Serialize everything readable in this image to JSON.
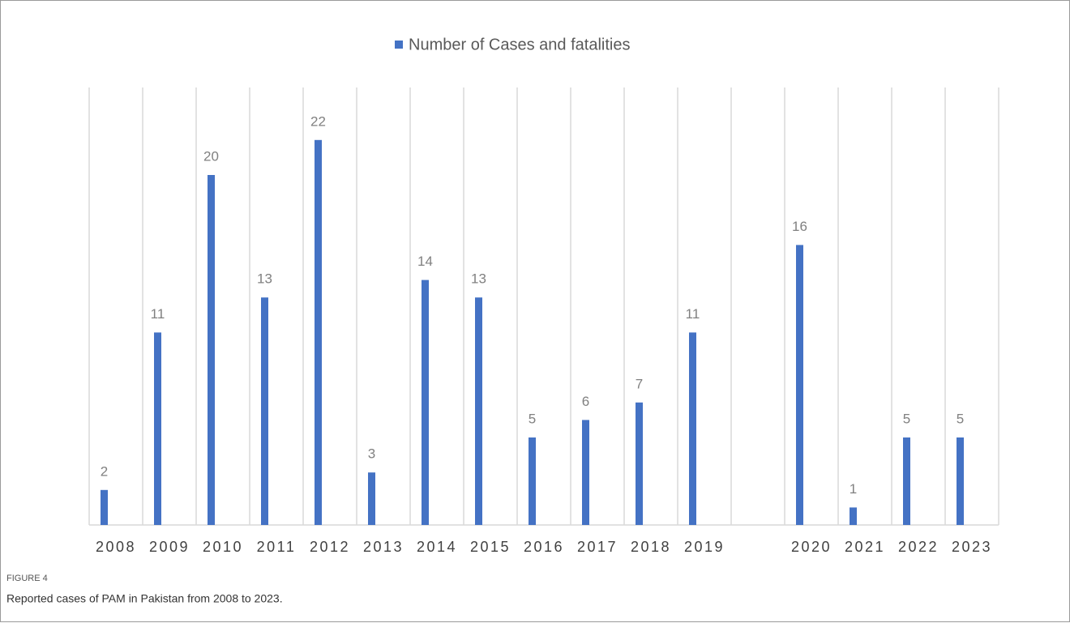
{
  "chart_data": {
    "type": "bar",
    "categories": [
      "2008",
      "2009",
      "2010",
      "2011",
      "2012",
      "2013",
      "2014",
      "2015",
      "2016",
      "2017",
      "2018",
      "2019",
      null,
      "2020",
      "2021",
      "2022",
      "2023"
    ],
    "series": [
      {
        "name": "Number of Cases and fatalities",
        "color": "#4472c4",
        "values": [
          2,
          11,
          20,
          13,
          22,
          3,
          14,
          13,
          5,
          6,
          7,
          11,
          null,
          16,
          1,
          5,
          5
        ]
      }
    ],
    "ylim": [
      0,
      25
    ],
    "grid": true,
    "legend": "top",
    "figure_label": "FIGURE 4",
    "caption": "Reported cases of PAM in Pakistan from 2008 to 2023."
  }
}
